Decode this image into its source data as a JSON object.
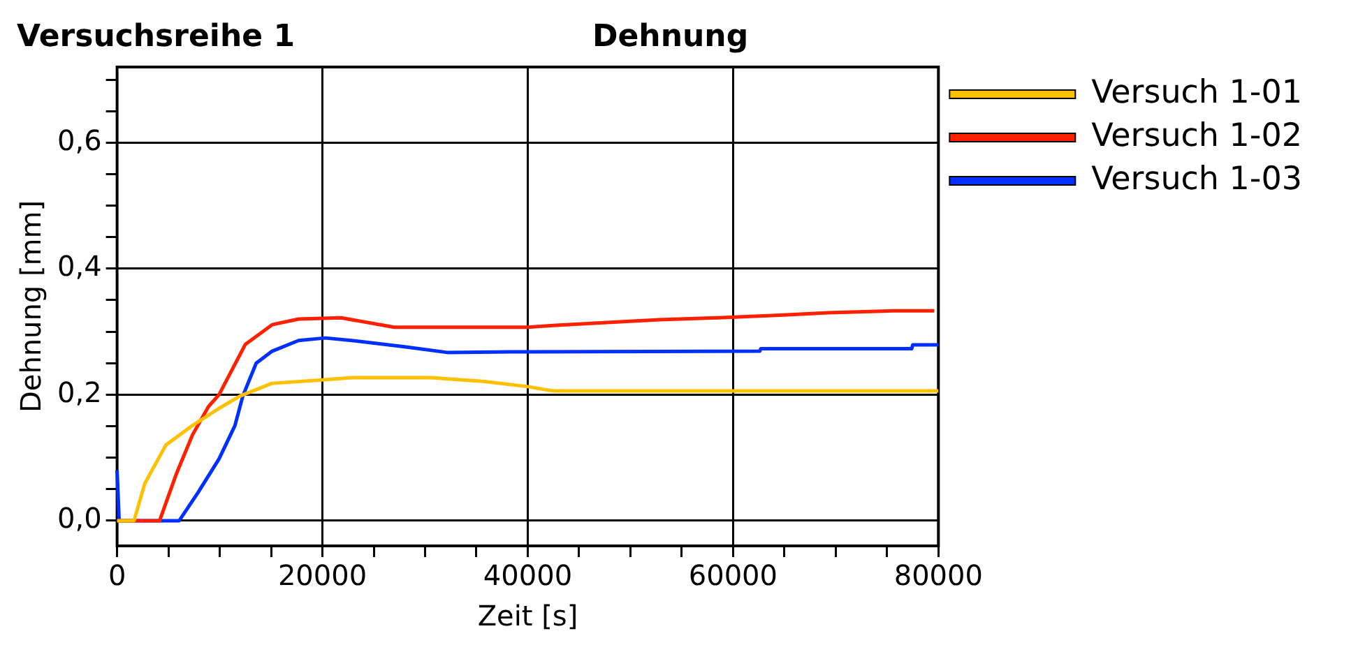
{
  "chart_data": {
    "type": "line",
    "title": "Versuchsreihe 1",
    "subtitle": "Dehnung",
    "xlabel": "Zeit [s]",
    "ylabel": "Dehnung [mm]",
    "xlim": [
      0,
      80000
    ],
    "ylim": [
      -0.04,
      0.72
    ],
    "xticks": [
      0,
      {
        "value": 5000,
        "label": null
      },
      {
        "value": 10000,
        "label": null
      },
      {
        "value": 15000,
        "label": null
      },
      20000,
      {
        "value": 25000,
        "label": null
      },
      {
        "value": 30000,
        "label": null
      },
      {
        "value": 35000,
        "label": null
      },
      40000,
      {
        "value": 45000,
        "label": null
      },
      {
        "value": 50000,
        "label": null
      },
      {
        "value": 55000,
        "label": null
      },
      60000,
      {
        "value": 65000,
        "label": null
      },
      {
        "value": 70000,
        "label": null
      },
      {
        "value": 75000,
        "label": null
      },
      80000
    ],
    "yticks": [
      {
        "value": 0,
        "label": "0,0"
      },
      {
        "value": 0.05,
        "label": null
      },
      {
        "value": 0.1,
        "label": null
      },
      {
        "value": 0.15,
        "label": null
      },
      {
        "value": 0.2,
        "label": "0,2"
      },
      {
        "value": 0.25,
        "label": null
      },
      {
        "value": 0.3,
        "label": null
      },
      {
        "value": 0.35,
        "label": null
      },
      {
        "value": 0.4,
        "label": "0,4"
      },
      {
        "value": 0.45,
        "label": null
      },
      {
        "value": 0.5,
        "label": null
      },
      {
        "value": 0.55,
        "label": null
      },
      {
        "value": 0.6,
        "label": "0,6"
      },
      {
        "value": 0.65,
        "label": null
      },
      {
        "value": 0.7,
        "label": null
      }
    ],
    "grid": true,
    "legend": "top right",
    "marker": "none",
    "line_style": "solid",
    "series": [
      {
        "name": "Versuch 1-01",
        "color": "#ffc000",
        "x": [
          0,
          1650,
          2700,
          4750,
          7340,
          9900,
          12000,
          15100,
          19750,
          22850,
          30600,
          35800,
          39900,
          42500,
          80000
        ],
        "values": [
          0,
          0,
          0.059,
          0.12,
          0.151,
          0.178,
          0.198,
          0.218,
          0.223,
          0.227,
          0.227,
          0.221,
          0.213,
          0.206,
          0.206
        ]
      },
      {
        "name": "Versuch 1-02",
        "color": "#ff2000",
        "x": [
          0,
          4140,
          5790,
          7340,
          8900,
          9930,
          12500,
          15100,
          17680,
          21820,
          27000,
          39900,
          42750,
          47100,
          52800,
          58500,
          64200,
          69300,
          75500,
          79600
        ],
        "values": [
          0,
          0,
          0.075,
          0.136,
          0.181,
          0.2,
          0.28,
          0.311,
          0.32,
          0.322,
          0.307,
          0.307,
          0.31,
          0.314,
          0.319,
          0.322,
          0.326,
          0.33,
          0.333,
          0.333
        ]
      },
      {
        "name": "Versuch 1-03",
        "color": "#0030ff",
        "x": [
          0,
          200,
          6050,
          7860,
          9930,
          11480,
          12250,
          13550,
          15100,
          17680,
          20270,
          22850,
          28000,
          32150,
          38350,
          62600,
          62700,
          77400,
          77500,
          80000
        ],
        "values": [
          0.08,
          0,
          0,
          0.044,
          0.098,
          0.151,
          0.198,
          0.25,
          0.269,
          0.286,
          0.29,
          0.286,
          0.276,
          0.267,
          0.268,
          0.269,
          0.273,
          0.273,
          0.279,
          0.279
        ]
      }
    ]
  }
}
